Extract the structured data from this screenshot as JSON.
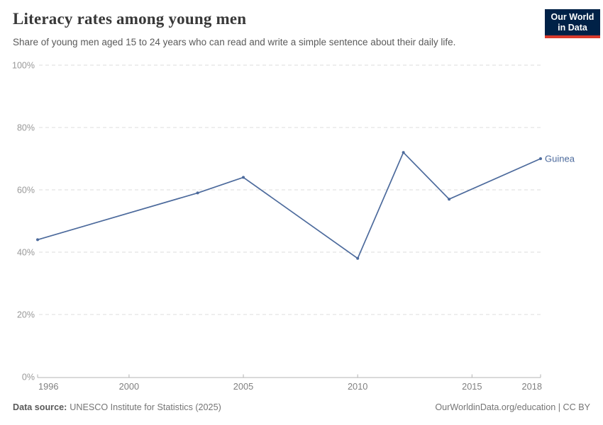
{
  "chart_data": {
    "type": "line",
    "title": "Literacy rates among young men",
    "subtitle": "Share of young men aged 15 to 24 years who can read and write a simple sentence about their daily life.",
    "xlabel": "",
    "ylabel": "",
    "xlim": [
      1996,
      2018
    ],
    "ylim": [
      0,
      100
    ],
    "x_ticks": [
      1996,
      2000,
      2005,
      2010,
      2015,
      2018
    ],
    "y_ticks": [
      0,
      20,
      40,
      60,
      80,
      100
    ],
    "y_tick_suffix": "%",
    "grid": "horizontal-dashed",
    "legend": "inline-end-label",
    "series": [
      {
        "name": "Guinea",
        "color": "#4C6A9C",
        "x": [
          1996,
          2003,
          2005,
          2010,
          2012,
          2014,
          2018
        ],
        "values": [
          44,
          59,
          64,
          38,
          72,
          57,
          70
        ]
      }
    ]
  },
  "theme": {
    "title_color": "#383838",
    "subtitle_color": "#5A5A5A",
    "y_label_color": "#999999",
    "x_label_color": "#808080",
    "gridline_color": "#DDDDDD",
    "axis_line_color": "#B3B3B3"
  },
  "logo": {
    "line1": "Our World",
    "line2": "in Data",
    "bg_color": "#002147",
    "accent_color": "#D93A2B",
    "text_color": "#FFFFFF"
  },
  "footer": {
    "source_label": "Data source:",
    "source_value": "UNESCO Institute for Statistics (2025)",
    "right_text": "OurWorldinData.org/education | CC BY"
  }
}
